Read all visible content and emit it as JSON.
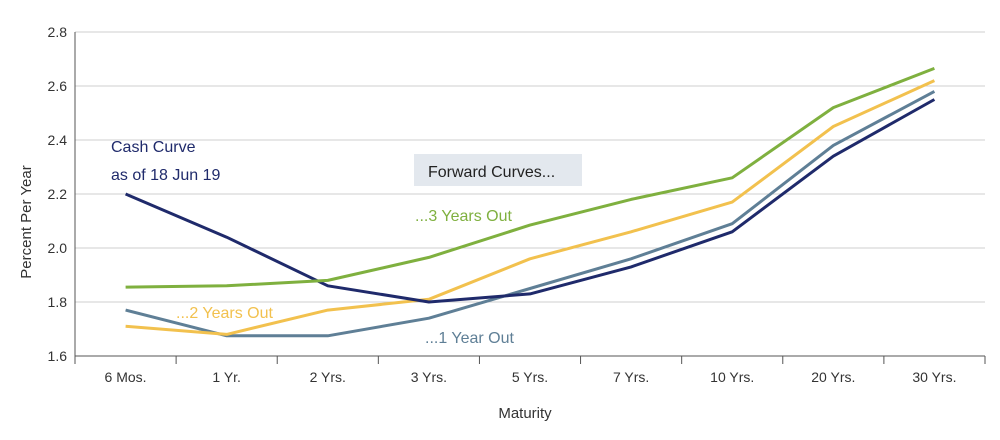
{
  "chart_data": {
    "type": "line",
    "title": "",
    "xlabel": "Maturity",
    "ylabel": "Percent Per Year",
    "ylim": [
      1.6,
      2.8
    ],
    "yticks": [
      "1.6",
      "1.8",
      "2.0",
      "2.2",
      "2.4",
      "2.6",
      "2.8"
    ],
    "grid": "horizontal",
    "categories": [
      "6 Mos.",
      "1 Yr.",
      "2 Yrs.",
      "3 Yrs.",
      "5 Yrs.",
      "7 Yrs.",
      "10 Yrs.",
      "20 Yrs.",
      "30 Yrs."
    ],
    "series": [
      {
        "name": "Cash Curve",
        "color": "#1f2a6b",
        "values": [
          2.2,
          2.04,
          1.86,
          1.8,
          1.83,
          1.93,
          2.06,
          2.34,
          2.55
        ]
      },
      {
        "name": "...1 Year Out",
        "color": "#5f7f96",
        "values": [
          1.77,
          1.675,
          1.675,
          1.74,
          1.85,
          1.96,
          2.09,
          2.38,
          2.58
        ]
      },
      {
        "name": "...2 Years Out",
        "color": "#f2c14e",
        "values": [
          1.71,
          1.68,
          1.77,
          1.81,
          1.96,
          2.06,
          2.17,
          2.45,
          2.62
        ]
      },
      {
        "name": "...3 Years Out",
        "color": "#7fb03f",
        "values": [
          1.855,
          1.86,
          1.88,
          1.965,
          2.085,
          2.18,
          2.26,
          2.52,
          2.665
        ]
      }
    ],
    "annotations": {
      "cash_curve_title": "Cash Curve",
      "cash_curve_date": "as of 18 Jun 19",
      "forward_curves_box": "Forward Curves...",
      "year1_label": "...1 Year Out",
      "year2_label": "...2 Years Out",
      "year3_label": "...3 Years Out"
    }
  }
}
